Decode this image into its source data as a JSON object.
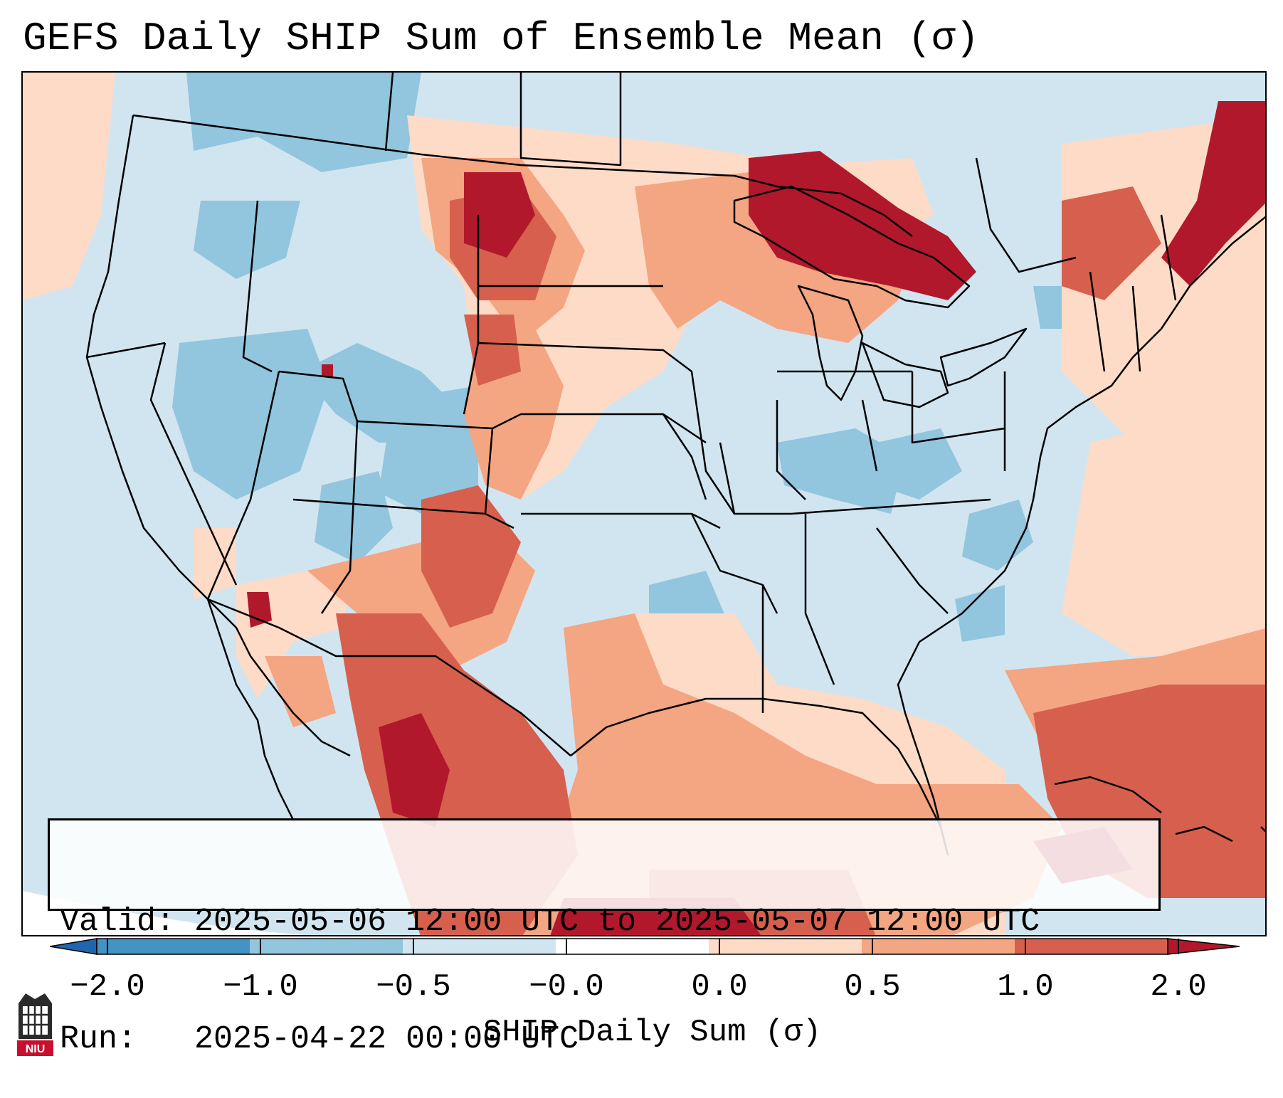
{
  "title": "GEFS Daily SHIP Sum of Ensemble Mean (σ)",
  "info": {
    "valid": "Valid: 2025-05-06 12:00 UTC to 2025-05-07 12:00 UTC",
    "run": "Run:   2025-04-22 00:00 UTC"
  },
  "colorbar": {
    "label": "SHIP Daily Sum (σ)",
    "ticks": [
      "−2.0",
      "−1.0",
      "−0.5",
      "−0.0",
      "0.0",
      "0.5",
      "1.0",
      "2.0"
    ],
    "colors": [
      "#4393c3",
      "#92c5de",
      "#d1e5f0",
      "#fddbc7",
      "#f4a582",
      "#d6604d",
      "#b2182b"
    ],
    "extend_low_color": "#2166ac",
    "extend_high_color": "#b2182b"
  },
  "logo": {
    "text": "NIU",
    "icon": "niu-logo-icon"
  }
}
